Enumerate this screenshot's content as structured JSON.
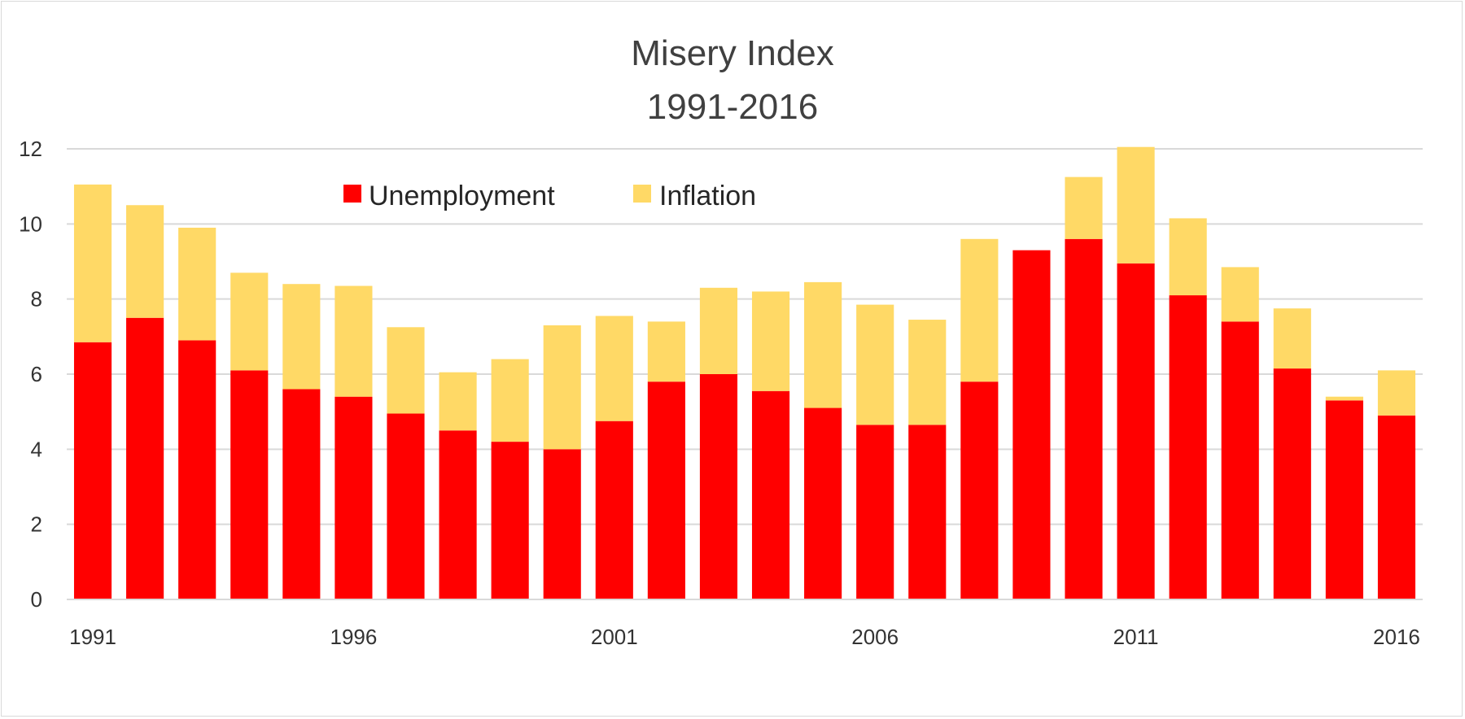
{
  "chart_data": {
    "type": "bar",
    "stacked": true,
    "title": "Misery Index",
    "subtitle": "1991-2016",
    "xlabel": "",
    "ylabel": "",
    "ylim": [
      0,
      12
    ],
    "yticks": [
      "0",
      "2",
      "4",
      "6",
      "8",
      "10",
      "12"
    ],
    "xtick_labels": [
      "1991",
      "1996",
      "2001",
      "2006",
      "2011",
      "2016"
    ],
    "grid": true,
    "legend_position": "top-left",
    "categories": [
      "1991",
      "1992",
      "1993",
      "1994",
      "1995",
      "1996",
      "1997",
      "1998",
      "1999",
      "2000",
      "2001",
      "2002",
      "2003",
      "2004",
      "2005",
      "2006",
      "2007",
      "2008",
      "2009",
      "2010",
      "2011",
      "2012",
      "2013",
      "2014",
      "2015",
      "2016"
    ],
    "series": [
      {
        "name": "Unemployment",
        "color": "#ff0000",
        "values": [
          6.85,
          7.5,
          6.9,
          6.1,
          5.6,
          5.4,
          4.95,
          4.5,
          4.2,
          4.0,
          4.75,
          5.8,
          6.0,
          5.55,
          5.1,
          4.65,
          4.65,
          5.8,
          9.3,
          9.6,
          8.95,
          8.1,
          7.4,
          6.15,
          5.3,
          4.9
        ]
      },
      {
        "name": "Inflation",
        "color": "#ffd966",
        "values": [
          4.2,
          3.0,
          3.0,
          2.6,
          2.8,
          2.95,
          2.3,
          1.55,
          2.2,
          3.3,
          2.8,
          1.6,
          2.3,
          2.65,
          3.35,
          3.2,
          2.8,
          3.8,
          0.0,
          1.65,
          3.1,
          2.05,
          1.45,
          1.6,
          0.1,
          1.2
        ]
      }
    ]
  }
}
